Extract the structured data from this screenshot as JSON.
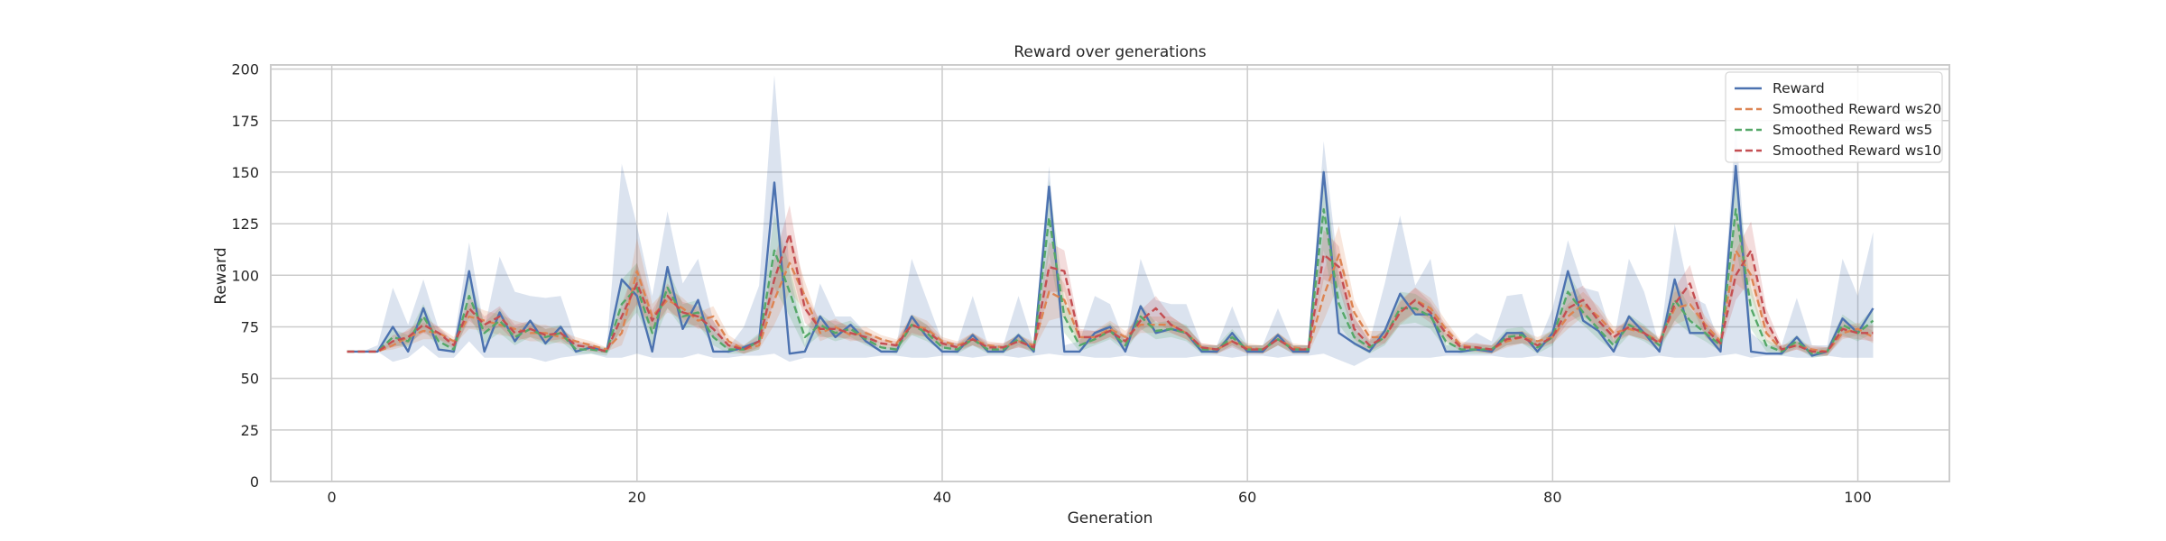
{
  "chart_data": {
    "type": "line",
    "title": "Reward over generations",
    "xlabel": "Generation",
    "ylabel": "Reward",
    "xlim": [
      -4,
      106
    ],
    "ylim": [
      0,
      202
    ],
    "xticks": [
      0,
      20,
      40,
      60,
      80,
      100
    ],
    "yticks": [
      0,
      25,
      50,
      75,
      100,
      125,
      150,
      175,
      200
    ],
    "grid": true,
    "legend_position": "top-right",
    "x": [
      1,
      2,
      3,
      4,
      5,
      6,
      7,
      8,
      9,
      10,
      11,
      12,
      13,
      14,
      15,
      16,
      17,
      18,
      19,
      20,
      21,
      22,
      23,
      24,
      25,
      26,
      27,
      28,
      29,
      30,
      31,
      32,
      33,
      34,
      35,
      36,
      37,
      38,
      39,
      40,
      41,
      42,
      43,
      44,
      45,
      46,
      47,
      48,
      49,
      50,
      51,
      52,
      53,
      54,
      55,
      56,
      57,
      58,
      59,
      60,
      61,
      62,
      63,
      64,
      65,
      66,
      67,
      68,
      69,
      70,
      71,
      72,
      73,
      74,
      75,
      76,
      77,
      78,
      79,
      80,
      81,
      82,
      83,
      84,
      85,
      86,
      87,
      88,
      89,
      90,
      91,
      92,
      93,
      94,
      95,
      96,
      97,
      98,
      99,
      100,
      101
    ],
    "series": [
      {
        "name": "Reward",
        "color": "#4c72b0",
        "dash": "solid",
        "values": [
          63,
          63,
          63,
          75,
          63,
          84,
          64,
          63,
          102,
          63,
          82,
          68,
          78,
          67,
          75,
          63,
          65,
          63,
          98,
          90,
          63,
          104,
          74,
          88,
          63,
          63,
          65,
          68,
          145,
          62,
          63,
          80,
          70,
          76,
          68,
          63,
          63,
          80,
          70,
          63,
          63,
          71,
          63,
          63,
          71,
          63,
          143,
          63,
          63,
          72,
          75,
          63,
          85,
          72,
          74,
          72,
          63,
          63,
          72,
          63,
          63,
          71,
          63,
          63,
          150,
          72,
          67,
          63,
          73,
          91,
          81,
          81,
          63,
          63,
          64,
          63,
          72,
          72,
          63,
          72,
          102,
          78,
          73,
          63,
          80,
          72,
          63,
          98,
          72,
          72,
          63,
          153,
          63,
          62,
          62,
          70,
          61,
          63,
          79,
          72,
          84
        ],
        "band_low": [
          63,
          63,
          63,
          58,
          60,
          66,
          60,
          60,
          68,
          60,
          60,
          60,
          60,
          58,
          60,
          61,
          62,
          60,
          60,
          62,
          60,
          60,
          60,
          62,
          60,
          60,
          61,
          61,
          62,
          58,
          60,
          60,
          60,
          60,
          60,
          61,
          61,
          60,
          60,
          61,
          61,
          60,
          61,
          61,
          60,
          61,
          62,
          61,
          61,
          60,
          60,
          61,
          60,
          60,
          60,
          60,
          61,
          61,
          60,
          61,
          61,
          60,
          61,
          61,
          62,
          59,
          56,
          60,
          60,
          60,
          60,
          60,
          61,
          61,
          61,
          61,
          60,
          60,
          61,
          60,
          60,
          60,
          60,
          61,
          60,
          60,
          61,
          60,
          60,
          60,
          61,
          62,
          60,
          61,
          61,
          60,
          60,
          61,
          60,
          60,
          60
        ],
        "band_high": [
          63,
          63,
          66,
          94,
          76,
          98,
          74,
          68,
          116,
          74,
          109,
          92,
          90,
          89,
          90,
          68,
          66,
          64,
          154,
          124,
          90,
          131,
          96,
          108,
          78,
          65,
          75,
          95,
          197,
          102,
          66,
          96,
          80,
          80,
          72,
          64,
          66,
          108,
          88,
          68,
          67,
          90,
          66,
          66,
          90,
          66,
          153,
          66,
          68,
          90,
          86,
          67,
          108,
          88,
          86,
          86,
          66,
          66,
          85,
          66,
          66,
          84,
          66,
          66,
          165,
          100,
          80,
          68,
          96,
          129,
          95,
          108,
          66,
          66,
          72,
          68,
          90,
          91,
          66,
          84,
          117,
          94,
          92,
          68,
          108,
          92,
          66,
          125,
          90,
          86,
          66,
          173,
          72,
          66,
          66,
          89,
          66,
          66,
          108,
          90,
          121
        ]
      },
      {
        "name": "Smoothed Reward ws20",
        "color": "#dd8452",
        "dash": "dashed",
        "values": [
          63,
          63,
          63,
          66,
          70,
          73,
          72,
          68,
          80,
          78,
          76,
          74,
          72,
          72,
          70,
          68,
          66,
          64,
          72,
          102,
          80,
          88,
          84,
          78,
          80,
          68,
          64,
          66,
          88,
          106,
          90,
          72,
          75,
          71,
          72,
          69,
          67,
          76,
          74,
          68,
          66,
          69,
          66,
          65,
          68,
          66,
          92,
          88,
          70,
          70,
          74,
          70,
          76,
          76,
          76,
          72,
          65,
          64,
          68,
          65,
          64,
          69,
          65,
          64,
          90,
          110,
          82,
          70,
          70,
          82,
          88,
          84,
          74,
          66,
          65,
          64,
          68,
          70,
          68,
          70,
          80,
          86,
          80,
          72,
          74,
          72,
          68,
          84,
          86,
          76,
          68,
          112,
          100,
          72,
          64,
          66,
          64,
          63,
          72,
          74,
          70
        ],
        "band_low": [
          63,
          63,
          63,
          64,
          66,
          69,
          69,
          66,
          74,
          73,
          71,
          70,
          68,
          68,
          67,
          66,
          64,
          63,
          66,
          86,
          74,
          82,
          79,
          74,
          75,
          65,
          62,
          64,
          76,
          92,
          83,
          68,
          71,
          68,
          69,
          67,
          65,
          71,
          70,
          66,
          64,
          66,
          64,
          63,
          65,
          64,
          78,
          80,
          67,
          67,
          70,
          67,
          72,
          72,
          72,
          69,
          63,
          62,
          66,
          63,
          62,
          66,
          63,
          62,
          78,
          96,
          76,
          67,
          67,
          76,
          82,
          79,
          70,
          64,
          63,
          62,
          65,
          67,
          66,
          67,
          74,
          80,
          75,
          69,
          71,
          69,
          66,
          76,
          79,
          72,
          65,
          96,
          90,
          68,
          62,
          64,
          62,
          61,
          69,
          71,
          67
        ],
        "band_high": [
          63,
          63,
          63,
          68,
          74,
          77,
          75,
          70,
          86,
          83,
          81,
          78,
          76,
          76,
          73,
          70,
          68,
          65,
          78,
          118,
          86,
          94,
          89,
          82,
          85,
          71,
          66,
          68,
          100,
          120,
          97,
          76,
          79,
          74,
          75,
          71,
          69,
          81,
          78,
          70,
          68,
          72,
          68,
          67,
          71,
          68,
          106,
          96,
          73,
          73,
          78,
          73,
          80,
          80,
          80,
          75,
          67,
          66,
          70,
          67,
          66,
          72,
          67,
          66,
          102,
          124,
          88,
          73,
          73,
          88,
          94,
          89,
          78,
          68,
          67,
          66,
          71,
          73,
          70,
          73,
          86,
          92,
          85,
          75,
          77,
          75,
          70,
          92,
          93,
          80,
          71,
          128,
          110,
          76,
          66,
          68,
          66,
          65,
          75,
          77,
          73
        ]
      },
      {
        "name": "Smoothed Reward ws5",
        "color": "#55a868",
        "dash": "dashed",
        "values": [
          63,
          63,
          63,
          70,
          68,
          80,
          68,
          64,
          90,
          72,
          78,
          70,
          74,
          70,
          72,
          64,
          64,
          63,
          86,
          94,
          72,
          94,
          80,
          82,
          70,
          64,
          64,
          68,
          112,
          92,
          70,
          76,
          72,
          74,
          69,
          65,
          64,
          76,
          72,
          65,
          64,
          69,
          64,
          64,
          69,
          64,
          128,
          80,
          66,
          69,
          73,
          66,
          80,
          73,
          74,
          72,
          64,
          64,
          70,
          64,
          64,
          69,
          64,
          64,
          132,
          86,
          70,
          65,
          70,
          84,
          84,
          80,
          68,
          64,
          64,
          64,
          70,
          71,
          65,
          70,
          92,
          82,
          74,
          66,
          76,
          72,
          66,
          88,
          78,
          72,
          66,
          132,
          84,
          66,
          63,
          68,
          62,
          63,
          76,
          72,
          78
        ],
        "band_low": [
          63,
          63,
          63,
          66,
          65,
          74,
          65,
          62,
          80,
          67,
          72,
          66,
          70,
          66,
          68,
          62,
          62,
          61,
          74,
          82,
          66,
          84,
          74,
          76,
          66,
          62,
          62,
          64,
          94,
          80,
          65,
          71,
          68,
          70,
          66,
          63,
          62,
          71,
          68,
          63,
          62,
          66,
          62,
          62,
          66,
          62,
          110,
          72,
          63,
          66,
          69,
          63,
          74,
          69,
          70,
          68,
          62,
          62,
          66,
          62,
          62,
          66,
          62,
          62,
          112,
          76,
          66,
          62,
          66,
          76,
          77,
          74,
          64,
          62,
          62,
          62,
          66,
          67,
          62,
          66,
          82,
          76,
          69,
          63,
          71,
          68,
          63,
          78,
          72,
          68,
          63,
          114,
          74,
          63,
          61,
          65,
          60,
          61,
          71,
          68,
          72
        ],
        "band_high": [
          63,
          63,
          63,
          74,
          71,
          86,
          71,
          66,
          100,
          77,
          84,
          74,
          78,
          74,
          76,
          66,
          66,
          65,
          98,
          106,
          78,
          104,
          86,
          88,
          74,
          66,
          66,
          72,
          130,
          104,
          75,
          81,
          76,
          78,
          72,
          67,
          66,
          81,
          76,
          67,
          66,
          72,
          66,
          66,
          72,
          66,
          146,
          88,
          69,
          72,
          77,
          69,
          86,
          77,
          78,
          76,
          66,
          66,
          74,
          66,
          66,
          72,
          66,
          66,
          152,
          96,
          74,
          68,
          74,
          92,
          91,
          86,
          72,
          66,
          66,
          66,
          74,
          75,
          68,
          74,
          102,
          88,
          79,
          69,
          81,
          76,
          69,
          98,
          84,
          76,
          69,
          150,
          94,
          69,
          65,
          71,
          64,
          65,
          81,
          76,
          84
        ]
      },
      {
        "name": "Smoothed Reward ws10",
        "color": "#c44e52",
        "dash": "dashed",
        "values": [
          63,
          63,
          63,
          68,
          70,
          76,
          72,
          66,
          84,
          76,
          80,
          72,
          74,
          71,
          72,
          66,
          65,
          63,
          80,
          96,
          78,
          90,
          82,
          80,
          74,
          66,
          64,
          68,
          98,
          120,
          84,
          74,
          74,
          72,
          70,
          67,
          66,
          76,
          73,
          67,
          65,
          69,
          65,
          65,
          68,
          65,
          104,
          102,
          70,
          70,
          73,
          68,
          78,
          84,
          76,
          72,
          65,
          64,
          68,
          64,
          64,
          69,
          64,
          64,
          110,
          104,
          74,
          66,
          70,
          82,
          88,
          82,
          72,
          65,
          65,
          64,
          69,
          70,
          66,
          70,
          84,
          88,
          78,
          70,
          75,
          72,
          67,
          86,
          96,
          74,
          67,
          100,
          112,
          78,
          64,
          66,
          63,
          63,
          74,
          72,
          72
        ],
        "band_low": [
          63,
          63,
          63,
          65,
          67,
          72,
          69,
          64,
          78,
          72,
          75,
          68,
          70,
          68,
          69,
          64,
          63,
          62,
          74,
          86,
          73,
          84,
          77,
          75,
          70,
          64,
          62,
          65,
          88,
          106,
          77,
          70,
          70,
          69,
          67,
          65,
          64,
          72,
          70,
          65,
          63,
          66,
          63,
          63,
          65,
          63,
          92,
          92,
          66,
          67,
          70,
          65,
          73,
          78,
          72,
          69,
          63,
          62,
          65,
          62,
          62,
          66,
          62,
          62,
          98,
          94,
          69,
          63,
          67,
          77,
          82,
          77,
          68,
          63,
          63,
          62,
          66,
          67,
          64,
          67,
          77,
          81,
          73,
          67,
          71,
          69,
          65,
          78,
          87,
          70,
          64,
          88,
          98,
          72,
          62,
          64,
          61,
          61,
          70,
          69,
          68
        ],
        "band_high": [
          63,
          63,
          63,
          71,
          73,
          80,
          75,
          68,
          90,
          80,
          85,
          76,
          78,
          74,
          75,
          68,
          67,
          64,
          86,
          106,
          83,
          96,
          87,
          85,
          78,
          68,
          66,
          71,
          108,
          134,
          91,
          78,
          78,
          75,
          73,
          69,
          68,
          80,
          76,
          69,
          67,
          72,
          67,
          67,
          71,
          67,
          116,
          112,
          74,
          73,
          76,
          71,
          83,
          90,
          80,
          75,
          67,
          66,
          71,
          66,
          66,
          72,
          66,
          66,
          122,
          114,
          79,
          69,
          73,
          87,
          94,
          87,
          76,
          67,
          67,
          66,
          72,
          73,
          68,
          73,
          91,
          95,
          83,
          73,
          79,
          75,
          69,
          94,
          105,
          78,
          70,
          112,
          126,
          84,
          66,
          68,
          65,
          65,
          78,
          75,
          76
        ]
      }
    ]
  }
}
